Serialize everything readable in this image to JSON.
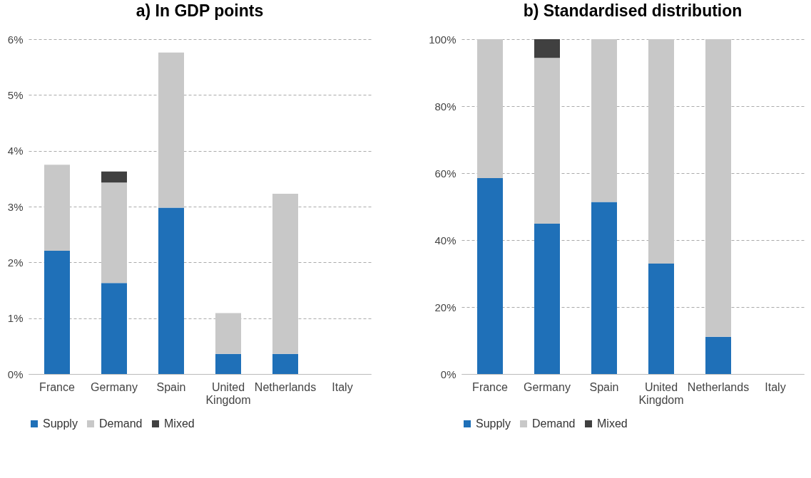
{
  "chart_data": [
    {
      "type": "bar",
      "title": "a) In GDP points",
      "stacked": true,
      "categories": [
        "France",
        "Germany",
        "Spain",
        "United Kingdom",
        "Netherlands",
        "Italy"
      ],
      "series": [
        {
          "name": "Supply",
          "color": "#1f70b8",
          "values": [
            2.21,
            1.63,
            2.98,
            0.36,
            0.36,
            0
          ]
        },
        {
          "name": "Demand",
          "color": "#c8c8c8",
          "values": [
            1.54,
            1.8,
            2.78,
            0.73,
            2.87,
            0
          ]
        },
        {
          "name": "Mixed",
          "color": "#404040",
          "values": [
            0,
            0.2,
            0,
            0,
            0,
            0
          ]
        }
      ],
      "ylim": [
        0,
        6
      ],
      "yticks": [
        {
          "value": 0,
          "label": "0%"
        },
        {
          "value": 1,
          "label": "1%"
        },
        {
          "value": 2,
          "label": "2%"
        },
        {
          "value": 3,
          "label": "3%"
        },
        {
          "value": 4,
          "label": "4%"
        },
        {
          "value": 5,
          "label": "5%"
        },
        {
          "value": 6,
          "label": "6%"
        }
      ],
      "grid": "y",
      "legend": "bottom"
    },
    {
      "type": "bar",
      "title": "b) Standardised distribution",
      "stacked": true,
      "categories": [
        "France",
        "Germany",
        "Spain",
        "United Kingdom",
        "Netherlands",
        "Italy"
      ],
      "series": [
        {
          "name": "Supply",
          "color": "#1f70b8",
          "values": [
            58.5,
            44.9,
            51.4,
            33.0,
            11.1,
            0
          ]
        },
        {
          "name": "Demand",
          "color": "#c8c8c8",
          "values": [
            41.5,
            49.5,
            48.6,
            67.0,
            88.9,
            0
          ]
        },
        {
          "name": "Mixed",
          "color": "#404040",
          "values": [
            0,
            5.6,
            0,
            0,
            0,
            0
          ]
        }
      ],
      "ylim": [
        0,
        100
      ],
      "yticks": [
        {
          "value": 0,
          "label": "0%"
        },
        {
          "value": 20,
          "label": "20%"
        },
        {
          "value": 40,
          "label": "40%"
        },
        {
          "value": 60,
          "label": "60%"
        },
        {
          "value": 80,
          "label": "80%"
        },
        {
          "value": 100,
          "label": "100%"
        }
      ],
      "grid": "y",
      "legend": "bottom"
    }
  ]
}
